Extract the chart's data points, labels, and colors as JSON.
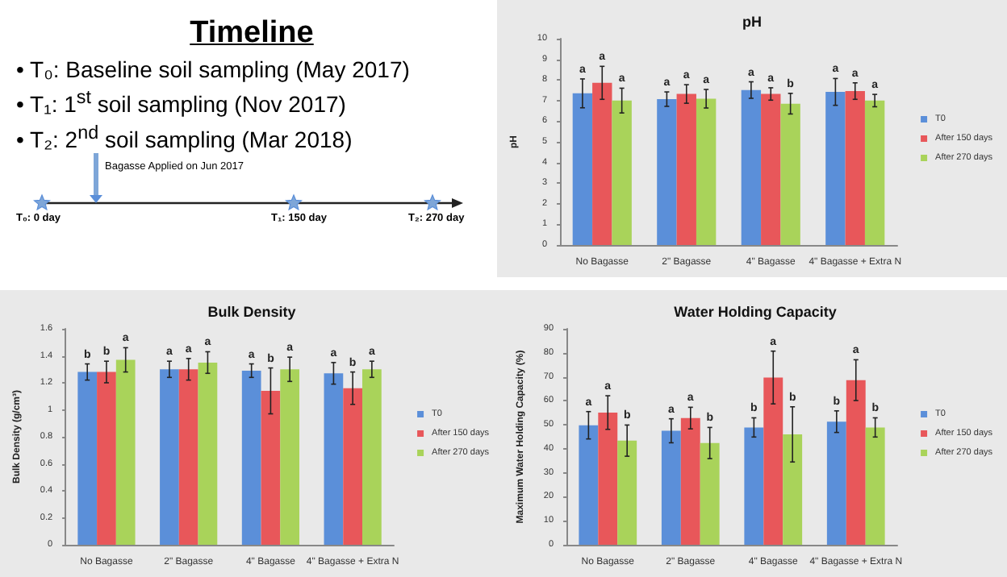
{
  "chart_data": [
    {
      "type": "other",
      "title": "Timeline",
      "annotations": [
        "• T₀: Baseline soil sampling (May 2017)",
        "• T₁: 1$^{st}$ soil sampling (Nov 2017)",
        "• T₂: 2$^{nd}$ soil sampling (Mar 2018)",
        "Bagasse Applied on Jun 2017",
        "T₀: 0 day",
        "T₁: 150 day",
        "T₂: 270 day"
      ]
    },
    {
      "type": "bar",
      "title": "pH",
      "ylabel": "pH",
      "categories": [
        "No Bagasse",
        "2\" Bagasse",
        "4\" Bagasse",
        "4\" Bagasse + Extra N"
      ],
      "ylim": [
        0,
        10
      ],
      "yticks": [
        0,
        1,
        2,
        3,
        4,
        5,
        6,
        7,
        8,
        9,
        10
      ],
      "grid": false,
      "legend": "right",
      "series": [
        {
          "name": "T0",
          "color": "#5b8fd9",
          "values": [
            7.35,
            7.07,
            7.51,
            7.42
          ],
          "errors": [
            0.7,
            0.35,
            0.4,
            0.65
          ],
          "value_labels": [
            "a",
            "a",
            "a",
            "a"
          ]
        },
        {
          "name": "After 150 days",
          "color": "#e8575a",
          "values": [
            7.86,
            7.32,
            7.32,
            7.46
          ],
          "errors": [
            0.8,
            0.45,
            0.3,
            0.4
          ],
          "value_labels": [
            "a",
            "a",
            "a",
            "a"
          ]
        },
        {
          "name": "After 270 days",
          "color": "#a9d35a",
          "values": [
            7.0,
            7.09,
            6.85,
            7.0
          ],
          "errors": [
            0.6,
            0.45,
            0.5,
            0.3
          ],
          "value_labels": [
            "a",
            "a",
            "b",
            "a"
          ]
        }
      ]
    },
    {
      "type": "bar",
      "title": "Bulk Density",
      "ylabel": "Bulk Density (g/cm³)",
      "categories": [
        "No Bagasse",
        "2\" Bagasse",
        "4\" Bagasse",
        "4\" Bagasse + Extra N"
      ],
      "ylim": [
        0,
        1.6
      ],
      "yticks": [
        0,
        0.2,
        0.4,
        0.6,
        0.8,
        1,
        1.2,
        1.4,
        1.6
      ],
      "grid": false,
      "legend": "right",
      "series": [
        {
          "name": "T0",
          "color": "#5b8fd9",
          "values": [
            1.28,
            1.3,
            1.29,
            1.27
          ],
          "errors": [
            0.06,
            0.06,
            0.05,
            0.08
          ],
          "value_labels": [
            "b",
            "a",
            "a",
            "a"
          ]
        },
        {
          "name": "After 150 days",
          "color": "#e8575a",
          "values": [
            1.28,
            1.3,
            1.14,
            1.16
          ],
          "errors": [
            0.08,
            0.08,
            0.17,
            0.12
          ],
          "value_labels": [
            "b",
            "a",
            "b",
            "b"
          ]
        },
        {
          "name": "After 270 days",
          "color": "#a9d35a",
          "values": [
            1.37,
            1.35,
            1.3,
            1.3
          ],
          "errors": [
            0.09,
            0.08,
            0.09,
            0.06
          ],
          "value_labels": [
            "a",
            "a",
            "a",
            "a"
          ]
        }
      ]
    },
    {
      "type": "bar",
      "title": "Water Holding Capacity",
      "ylabel": "Maximum Water Holding Capacity (%)",
      "categories": [
        "No Bagasse",
        "2\" Bagasse",
        "4\" Bagasse",
        "4\" Bagasse + Extra N"
      ],
      "ylim": [
        0,
        90
      ],
      "yticks": [
        0,
        10,
        20,
        30,
        40,
        50,
        60,
        70,
        80,
        90
      ],
      "grid": false,
      "legend": "right",
      "series": [
        {
          "name": "T0",
          "color": "#5b8fd9",
          "values": [
            49.8,
            47.5,
            48.9,
            51.3
          ],
          "errors": [
            5.7,
            5,
            4,
            4.5
          ],
          "value_labels": [
            "a",
            "a",
            "b",
            "b"
          ]
        },
        {
          "name": "After 150 days",
          "color": "#e8575a",
          "values": [
            55.1,
            52.8,
            69.7,
            68.6
          ],
          "errors": [
            7,
            4.5,
            11,
            8.5
          ],
          "value_labels": [
            "a",
            "a",
            "a",
            "a"
          ]
        },
        {
          "name": "After 270 days",
          "color": "#a9d35a",
          "values": [
            43.4,
            42.4,
            46,
            48.9
          ],
          "errors": [
            6.5,
            6.5,
            11.5,
            4
          ],
          "value_labels": [
            "b",
            "b",
            "b",
            "b"
          ]
        }
      ]
    }
  ]
}
